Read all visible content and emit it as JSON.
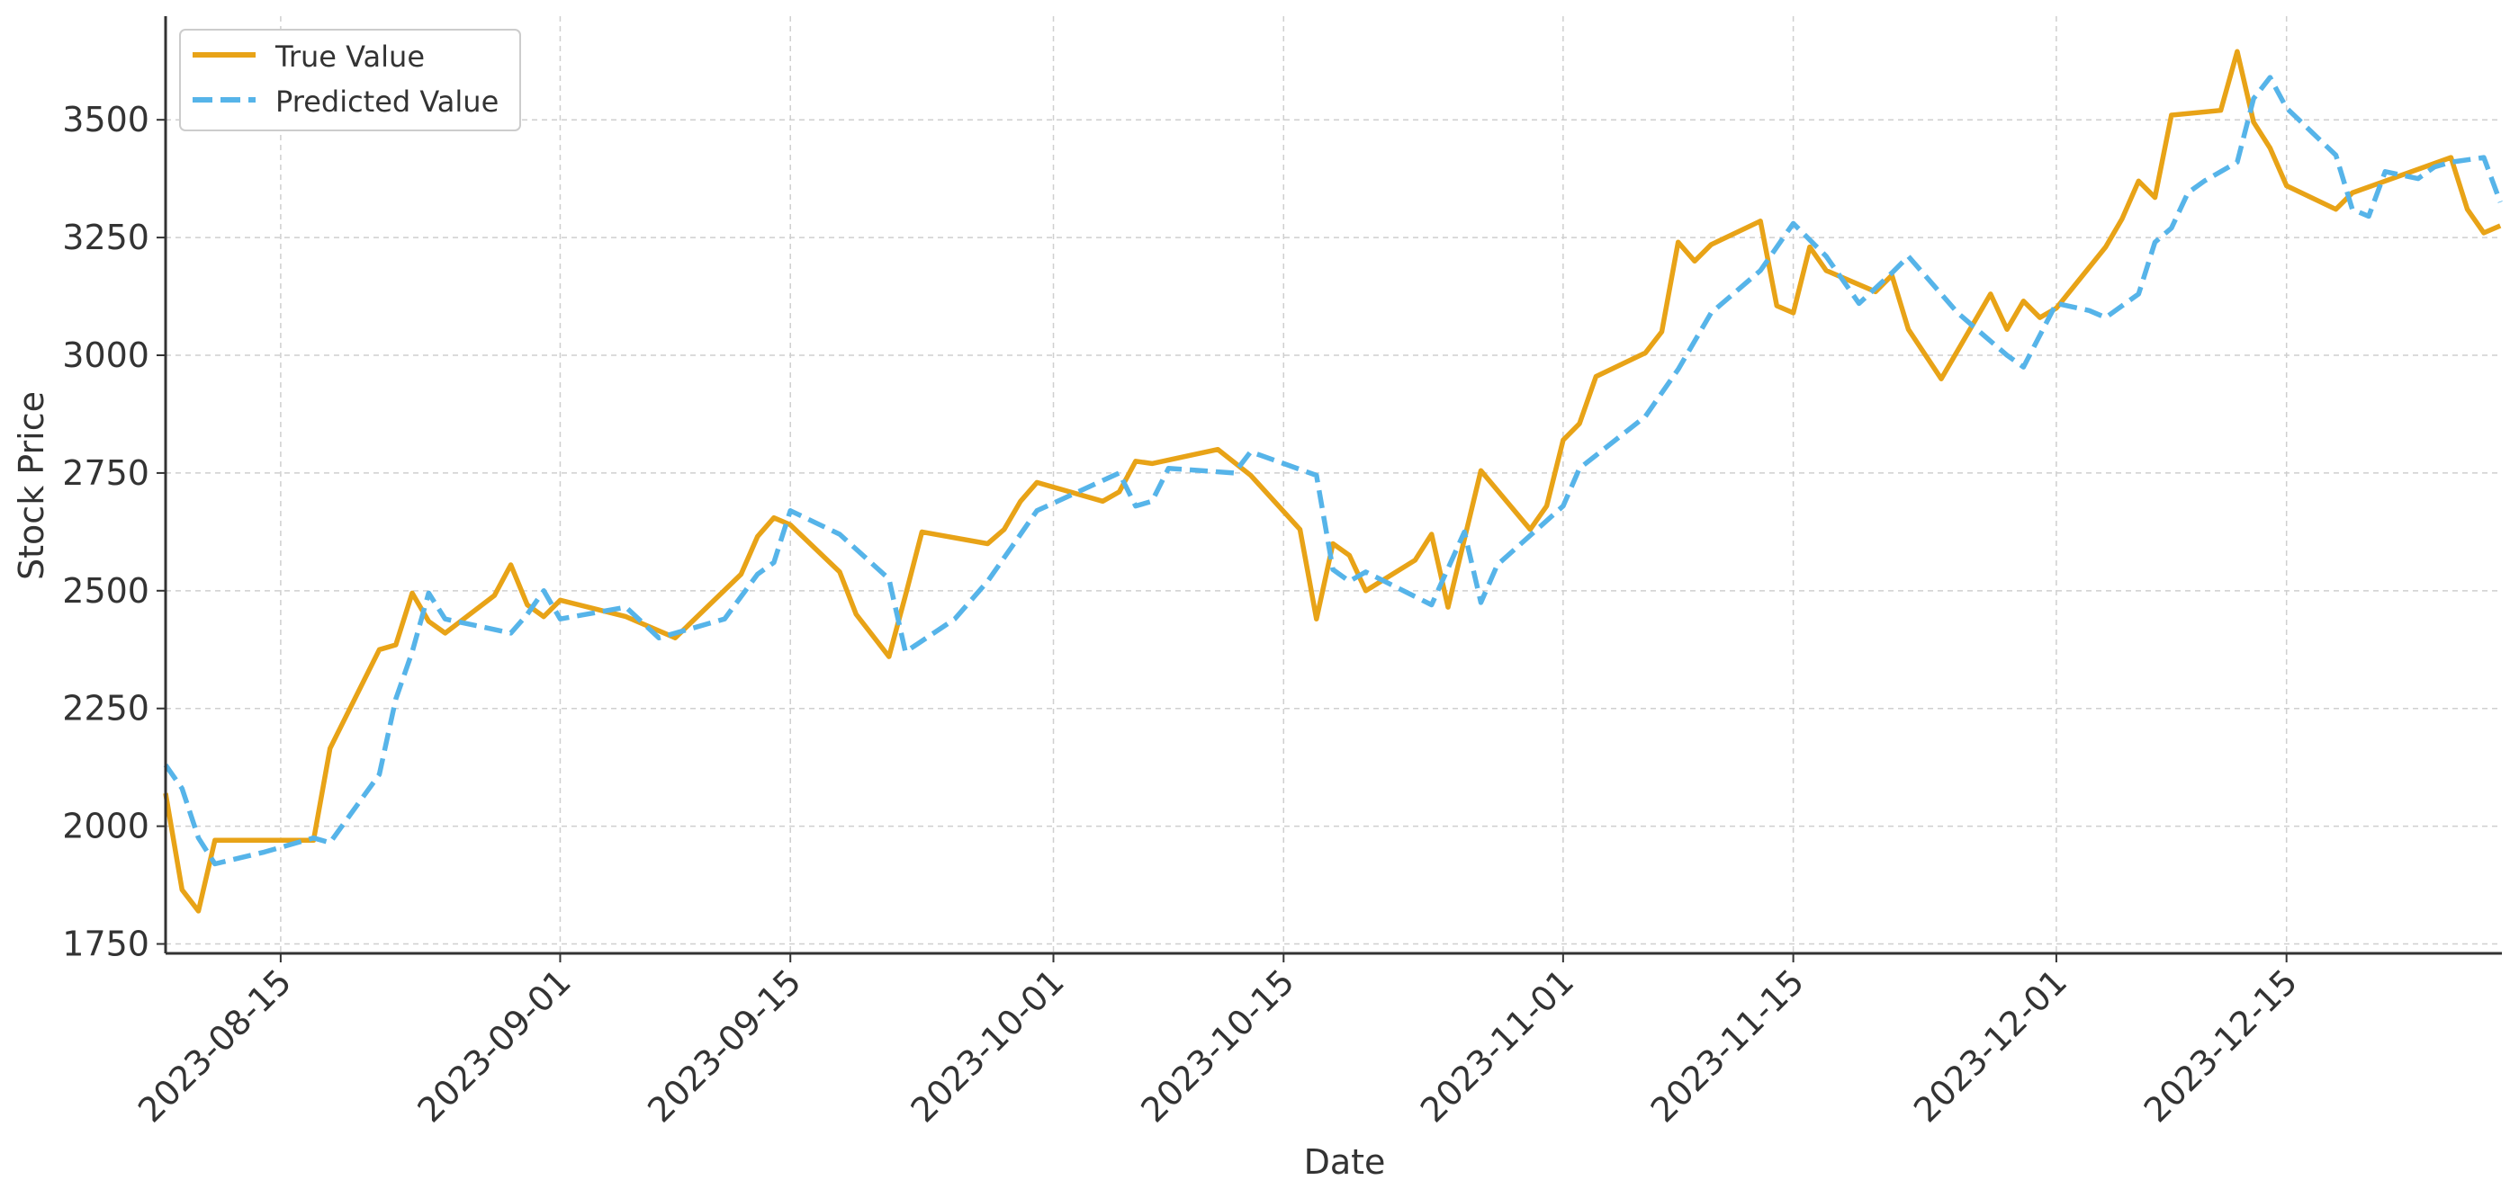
{
  "chart_data": {
    "type": "line",
    "title": "",
    "xlabel": "Date",
    "ylabel": "Stock Price",
    "x_tick_labels": [
      "2023-08-15",
      "2023-09-01",
      "2023-09-15",
      "2023-10-01",
      "2023-10-15",
      "2023-11-01",
      "2023-11-15",
      "2023-12-01",
      "2023-12-15"
    ],
    "y_tick_labels": [
      "1750",
      "2000",
      "2250",
      "2500",
      "2750",
      "3000",
      "3250",
      "3500"
    ],
    "xlim": [
      "2023-08-08",
      "2023-12-27"
    ],
    "ylim": [
      1730,
      3720
    ],
    "grid": true,
    "legend_position": "top-left",
    "series": [
      {
        "name": "True Value",
        "color": "#E8A317",
        "style": "solid",
        "points": [
          [
            "2023-08-08",
            2070
          ],
          [
            "2023-08-09",
            1865
          ],
          [
            "2023-08-10",
            1820
          ],
          [
            "2023-08-11",
            1970
          ],
          [
            "2023-08-17",
            1970
          ],
          [
            "2023-08-18",
            2165
          ],
          [
            "2023-08-21",
            2375
          ],
          [
            "2023-08-22",
            2385
          ],
          [
            "2023-08-23",
            2495
          ],
          [
            "2023-08-24",
            2435
          ],
          [
            "2023-08-25",
            2410
          ],
          [
            "2023-08-28",
            2490
          ],
          [
            "2023-08-29",
            2555
          ],
          [
            "2023-08-30",
            2470
          ],
          [
            "2023-08-31",
            2445
          ],
          [
            "2023-09-01",
            2480
          ],
          [
            "2023-09-05",
            2445
          ],
          [
            "2023-09-08",
            2400
          ],
          [
            "2023-09-12",
            2535
          ],
          [
            "2023-09-13",
            2615
          ],
          [
            "2023-09-14",
            2655
          ],
          [
            "2023-09-15",
            2640
          ],
          [
            "2023-09-18",
            2540
          ],
          [
            "2023-09-19",
            2450
          ],
          [
            "2023-09-21",
            2360
          ],
          [
            "2023-09-22",
            2490
          ],
          [
            "2023-09-23",
            2625
          ],
          [
            "2023-09-27",
            2600
          ],
          [
            "2023-09-28",
            2630
          ],
          [
            "2023-09-29",
            2690
          ],
          [
            "2023-09-30",
            2730
          ],
          [
            "2023-10-04",
            2690
          ],
          [
            "2023-10-05",
            2710
          ],
          [
            "2023-10-06",
            2775
          ],
          [
            "2023-10-07",
            2770
          ],
          [
            "2023-10-11",
            2800
          ],
          [
            "2023-10-13",
            2745
          ],
          [
            "2023-10-16",
            2630
          ],
          [
            "2023-10-17",
            2440
          ],
          [
            "2023-10-18",
            2600
          ],
          [
            "2023-10-19",
            2575
          ],
          [
            "2023-10-20",
            2500
          ],
          [
            "2023-10-23",
            2565
          ],
          [
            "2023-10-24",
            2620
          ],
          [
            "2023-10-25",
            2465
          ],
          [
            "2023-10-27",
            2755
          ],
          [
            "2023-10-30",
            2630
          ],
          [
            "2023-10-31",
            2680
          ],
          [
            "2023-11-01",
            2820
          ],
          [
            "2023-11-02",
            2855
          ],
          [
            "2023-11-03",
            2955
          ],
          [
            "2023-11-06",
            3005
          ],
          [
            "2023-11-07",
            3050
          ],
          [
            "2023-11-08",
            3240
          ],
          [
            "2023-11-09",
            3200
          ],
          [
            "2023-11-10",
            3235
          ],
          [
            "2023-11-13",
            3285
          ],
          [
            "2023-11-14",
            3105
          ],
          [
            "2023-11-15",
            3090
          ],
          [
            "2023-11-16",
            3230
          ],
          [
            "2023-11-17",
            3180
          ],
          [
            "2023-11-20",
            3135
          ],
          [
            "2023-11-21",
            3170
          ],
          [
            "2023-11-22",
            3055
          ],
          [
            "2023-11-24",
            2950
          ],
          [
            "2023-11-27",
            3130
          ],
          [
            "2023-11-28",
            3055
          ],
          [
            "2023-11-29",
            3115
          ],
          [
            "2023-11-30",
            3080
          ],
          [
            "2023-12-01",
            3100
          ],
          [
            "2023-12-04",
            3230
          ],
          [
            "2023-12-05",
            3290
          ],
          [
            "2023-12-06",
            3370
          ],
          [
            "2023-12-07",
            3335
          ],
          [
            "2023-12-08",
            3510
          ],
          [
            "2023-12-11",
            3520
          ],
          [
            "2023-12-12",
            3645
          ],
          [
            "2023-12-13",
            3495
          ],
          [
            "2023-12-14",
            3440
          ],
          [
            "2023-12-15",
            3360
          ],
          [
            "2023-12-18",
            3310
          ],
          [
            "2023-12-19",
            3345
          ],
          [
            "2023-12-21",
            3370
          ],
          [
            "2023-12-25",
            3420
          ],
          [
            "2023-12-26",
            3310
          ],
          [
            "2023-12-27",
            3260
          ],
          [
            "2023-12-28",
            3275
          ]
        ]
      },
      {
        "name": "Predicted Value",
        "color": "#56B4E9",
        "style": "dashed",
        "points": [
          [
            "2023-08-08",
            2130
          ],
          [
            "2023-08-09",
            2080
          ],
          [
            "2023-08-10",
            1975
          ],
          [
            "2023-08-11",
            1920
          ],
          [
            "2023-08-14",
            1945
          ],
          [
            "2023-08-17",
            1975
          ],
          [
            "2023-08-18",
            1965
          ],
          [
            "2023-08-21",
            2110
          ],
          [
            "2023-08-22",
            2270
          ],
          [
            "2023-08-23",
            2370
          ],
          [
            "2023-08-24",
            2495
          ],
          [
            "2023-08-25",
            2440
          ],
          [
            "2023-08-29",
            2410
          ],
          [
            "2023-08-30",
            2450
          ],
          [
            "2023-08-31",
            2500
          ],
          [
            "2023-09-01",
            2440
          ],
          [
            "2023-09-05",
            2465
          ],
          [
            "2023-09-07",
            2400
          ],
          [
            "2023-09-11",
            2440
          ],
          [
            "2023-09-13",
            2535
          ],
          [
            "2023-09-14",
            2560
          ],
          [
            "2023-09-15",
            2670
          ],
          [
            "2023-09-18",
            2620
          ],
          [
            "2023-09-21",
            2525
          ],
          [
            "2023-09-22",
            2370
          ],
          [
            "2023-09-25",
            2440
          ],
          [
            "2023-09-27",
            2520
          ],
          [
            "2023-09-29",
            2620
          ],
          [
            "2023-09-30",
            2670
          ],
          [
            "2023-10-05",
            2750
          ],
          [
            "2023-10-06",
            2680
          ],
          [
            "2023-10-07",
            2690
          ],
          [
            "2023-10-08",
            2760
          ],
          [
            "2023-10-12",
            2750
          ],
          [
            "2023-10-13",
            2795
          ],
          [
            "2023-10-15",
            2770
          ],
          [
            "2023-10-17",
            2745
          ],
          [
            "2023-10-18",
            2545
          ],
          [
            "2023-10-19",
            2520
          ],
          [
            "2023-10-20",
            2540
          ],
          [
            "2023-10-24",
            2470
          ],
          [
            "2023-10-26",
            2625
          ],
          [
            "2023-10-27",
            2475
          ],
          [
            "2023-10-28",
            2555
          ],
          [
            "2023-11-01",
            2680
          ],
          [
            "2023-11-02",
            2760
          ],
          [
            "2023-11-06",
            2870
          ],
          [
            "2023-11-08",
            2970
          ],
          [
            "2023-11-10",
            3090
          ],
          [
            "2023-11-13",
            3180
          ],
          [
            "2023-11-15",
            3280
          ],
          [
            "2023-11-17",
            3210
          ],
          [
            "2023-11-19",
            3110
          ],
          [
            "2023-11-21",
            3175
          ],
          [
            "2023-11-22",
            3210
          ],
          [
            "2023-11-25",
            3090
          ],
          [
            "2023-11-28",
            3000
          ],
          [
            "2023-11-29",
            2975
          ],
          [
            "2023-12-01",
            3110
          ],
          [
            "2023-12-03",
            3095
          ],
          [
            "2023-12-04",
            3080
          ],
          [
            "2023-12-06",
            3130
          ],
          [
            "2023-12-07",
            3240
          ],
          [
            "2023-12-08",
            3270
          ],
          [
            "2023-12-09",
            3345
          ],
          [
            "2023-12-10",
            3370
          ],
          [
            "2023-12-12",
            3410
          ],
          [
            "2023-12-13",
            3545
          ],
          [
            "2023-12-14",
            3590
          ],
          [
            "2023-12-15",
            3525
          ],
          [
            "2023-12-18",
            3425
          ],
          [
            "2023-12-19",
            3310
          ],
          [
            "2023-12-20",
            3295
          ],
          [
            "2023-12-21",
            3390
          ],
          [
            "2023-12-23",
            3375
          ],
          [
            "2023-12-24",
            3400
          ],
          [
            "2023-12-25",
            3410
          ],
          [
            "2023-12-27",
            3420
          ],
          [
            "2023-12-28",
            3325
          ]
        ]
      }
    ]
  }
}
